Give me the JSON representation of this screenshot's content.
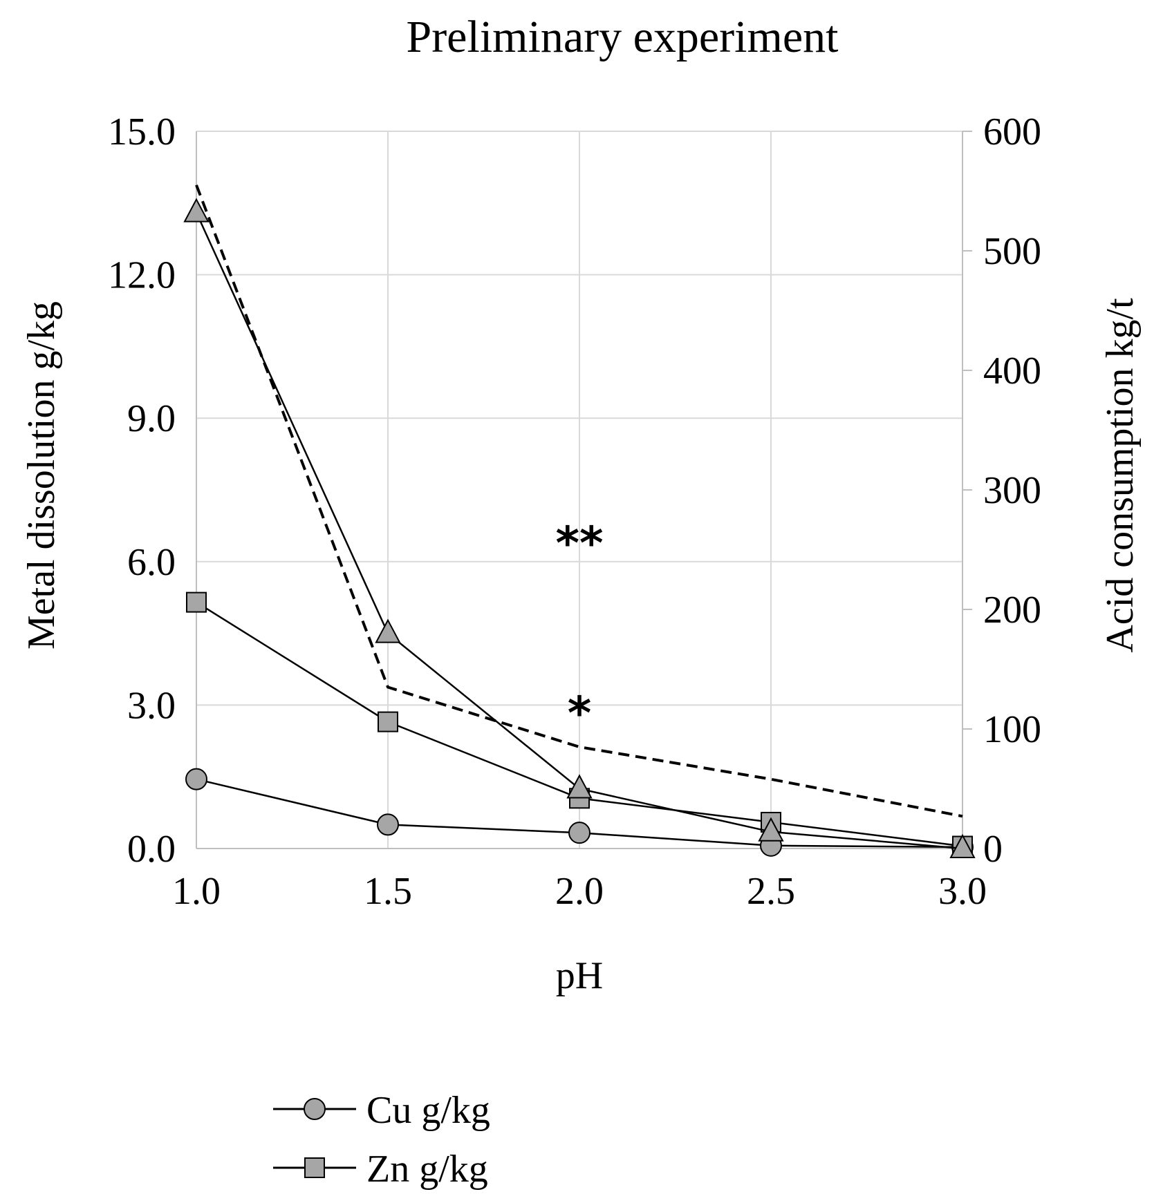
{
  "chart_data": {
    "type": "line",
    "title": "Preliminary experiment",
    "xlabel": "pH",
    "ylabel_left": "Metal dissolution g/kg",
    "ylabel_right": "Acid consumption kg/t",
    "x": [
      1.0,
      1.5,
      2.0,
      2.5,
      3.0
    ],
    "x_tick_labels": [
      "1.0",
      "1.5",
      "2.0",
      "2.5",
      "3.0"
    ],
    "y_left_range": [
      0,
      15
    ],
    "y_left_tick_values": [
      0,
      3,
      6,
      9,
      12,
      15
    ],
    "y_left_tick_labels": [
      "0.0",
      "3.0",
      "6.0",
      "9.0",
      "12.0",
      "15.0"
    ],
    "y_right_range": [
      0,
      600
    ],
    "y_right_tick_values": [
      0,
      100,
      200,
      300,
      400,
      500,
      600
    ],
    "y_right_tick_labels": [
      "0",
      "100",
      "200",
      "300",
      "400",
      "500",
      "600"
    ],
    "grid": true,
    "series": [
      {
        "name": "Cu g/kg",
        "axis": "left",
        "marker": "circle",
        "line": "solid",
        "values": [
          1.45,
          0.5,
          0.33,
          0.06,
          0.03
        ]
      },
      {
        "name": "Zn g/kg",
        "axis": "left",
        "marker": "square",
        "line": "solid",
        "values": [
          5.15,
          2.65,
          1.05,
          0.55,
          0.05
        ]
      },
      {
        "name": "",
        "axis": "left",
        "marker": "triangle",
        "line": "solid",
        "values": [
          13.3,
          4.5,
          1.25,
          0.35,
          0.0
        ]
      },
      {
        "name": "",
        "axis": "right",
        "marker": "none",
        "line": "dashed",
        "values": [
          555,
          135,
          85,
          58,
          27
        ]
      }
    ],
    "annotations": [
      {
        "text": "**",
        "x": 2.0,
        "y_left": 6.4
      },
      {
        "text": "*",
        "x": 2.0,
        "y_left": 2.85
      }
    ],
    "legend": {
      "placement": "bottom-left",
      "entries": [
        "Cu g/kg",
        "Zn g/kg"
      ]
    }
  }
}
